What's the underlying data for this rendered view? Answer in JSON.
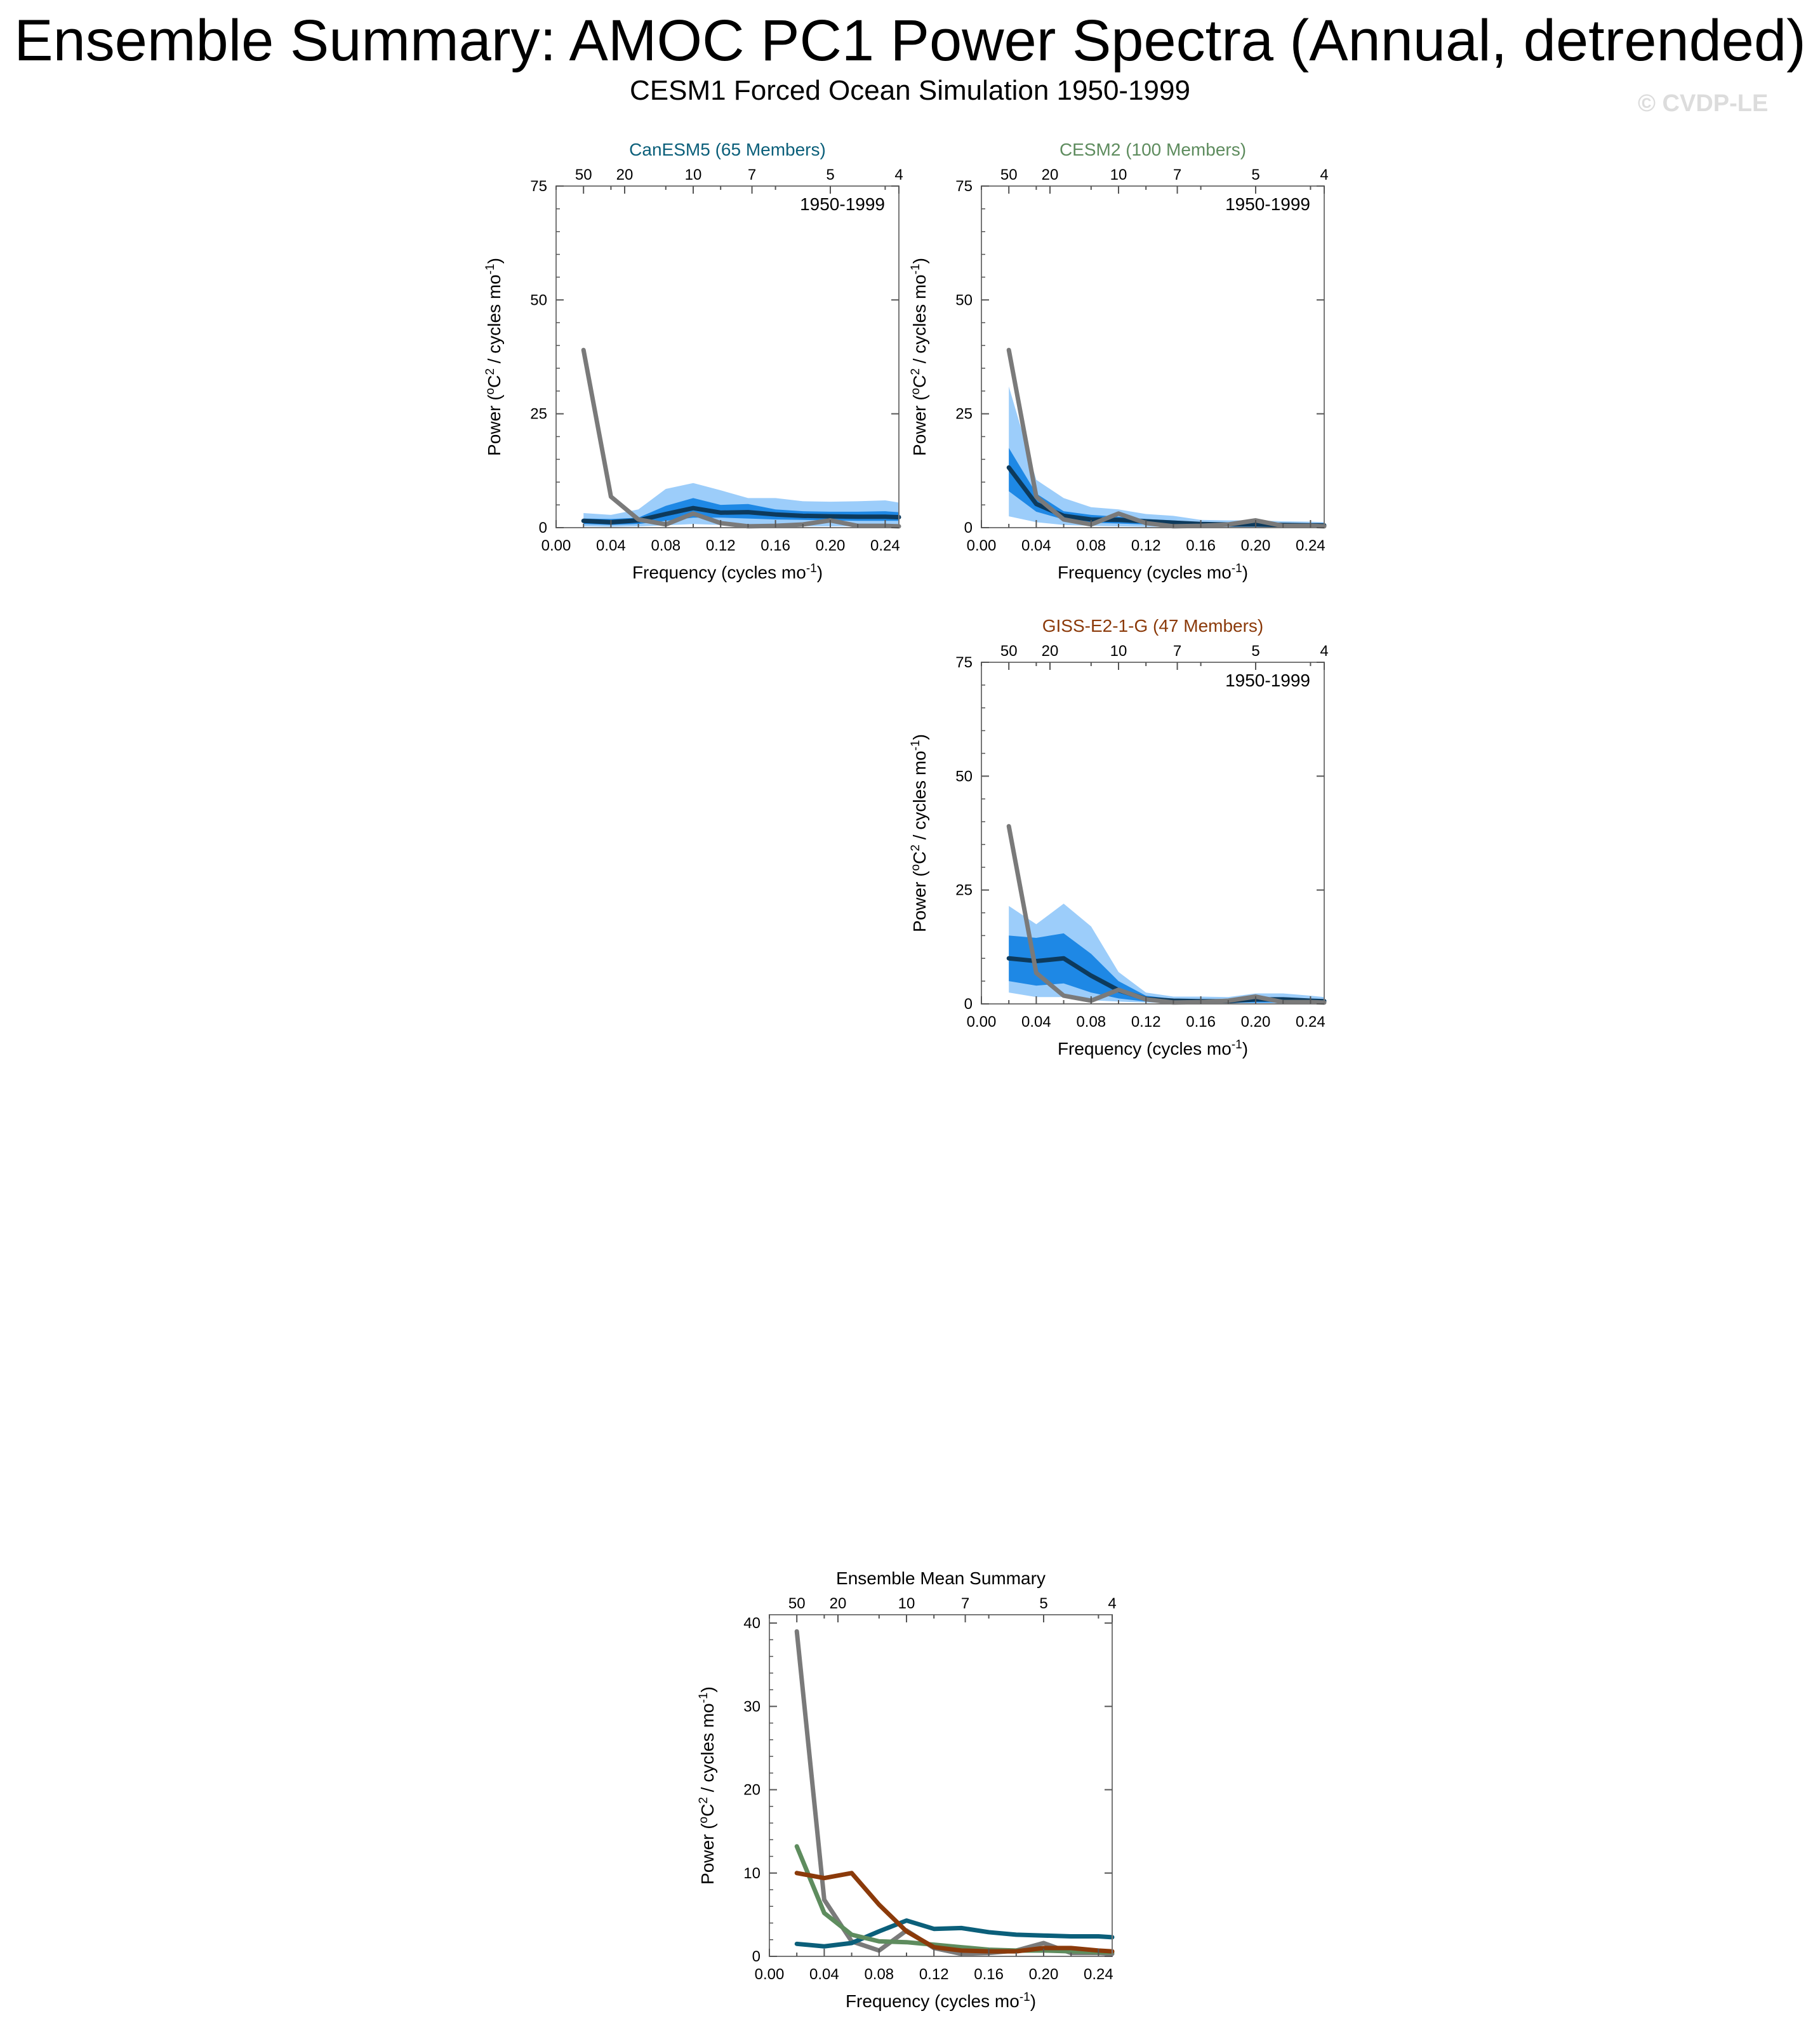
{
  "header": {
    "title": "Ensemble Summary: AMOC PC1 Power Spectra (Annual, detrended)",
    "subtitle": "CESM1 Forced Ocean Simulation 1950-1999",
    "watermark": "© CVDP-LE"
  },
  "colors": {
    "canesm5": "#0b5f7a",
    "cesm2": "#5e8c5e",
    "giss": "#8b3a0a",
    "observed": "#7a7a7a",
    "ensemble_mean": "#0d3a5c",
    "inner_band": "#1e88e5",
    "outer_band": "#9ccdfa"
  },
  "chart_data": [
    {
      "type": "line",
      "title": "CanESM5 (65 Members)",
      "period_label": "1950-1999",
      "xlabel": "Frequency (cycles mo-1)",
      "ylabel": "Power (oC2 / cycles mo-1)",
      "xlim": [
        0,
        0.25
      ],
      "ylim": [
        0,
        75
      ],
      "x_ticks": [
        "0.00",
        "0.04",
        "0.08",
        "0.12",
        "0.16",
        "0.20",
        "0.24"
      ],
      "y_ticks": [
        "0",
        "25",
        "50",
        "75"
      ],
      "top_axis_ticks": [
        "50",
        "20",
        "10",
        "7",
        "5",
        "4"
      ],
      "x": [
        0.02,
        0.04,
        0.06,
        0.08,
        0.1,
        0.12,
        0.14,
        0.16,
        0.18,
        0.2,
        0.22,
        0.24,
        0.25
      ],
      "outer_band": {
        "lower": [
          0.3,
          0.2,
          0.3,
          0.5,
          0.8,
          0.6,
          0.5,
          0.4,
          0.3,
          0.3,
          0.3,
          0.3,
          0.3
        ],
        "upper": [
          3.2,
          2.8,
          4,
          8.5,
          9.8,
          8.2,
          6.5,
          6.5,
          5.8,
          5.7,
          5.8,
          6,
          5.5
        ]
      },
      "inner_band": {
        "lower": [
          0.8,
          0.6,
          0.8,
          1.5,
          2.2,
          2.2,
          2,
          1.8,
          1.7,
          1.6,
          1.5,
          1.5,
          1.5
        ],
        "upper": [
          2,
          1.9,
          2.2,
          4.8,
          6.5,
          5,
          5.2,
          4,
          3.6,
          3.5,
          3.5,
          3.6,
          3.4
        ]
      },
      "series": [
        {
          "role": "ensemble_mean",
          "values": [
            1.5,
            1.2,
            1.6,
            3,
            4.3,
            3.3,
            3.4,
            2.9,
            2.6,
            2.5,
            2.4,
            2.4,
            2.3
          ]
        },
        {
          "role": "observed",
          "values": [
            39,
            6.8,
            1.8,
            0.7,
            3.1,
            1.0,
            0.3,
            0.4,
            0.7,
            1.6,
            0.4,
            0.4,
            0.3
          ]
        }
      ]
    },
    {
      "type": "line",
      "title": "CESM2 (100 Members)",
      "period_label": "1950-1999",
      "xlabel": "Frequency (cycles mo-1)",
      "ylabel": "Power (oC2 / cycles mo-1)",
      "xlim": [
        0,
        0.25
      ],
      "ylim": [
        0,
        75
      ],
      "x_ticks": [
        "0.00",
        "0.04",
        "0.08",
        "0.12",
        "0.16",
        "0.20",
        "0.24"
      ],
      "y_ticks": [
        "0",
        "25",
        "50",
        "75"
      ],
      "top_axis_ticks": [
        "50",
        "20",
        "10",
        "7",
        "5",
        "4"
      ],
      "x": [
        0.02,
        0.04,
        0.06,
        0.08,
        0.1,
        0.12,
        0.14,
        0.16,
        0.18,
        0.2,
        0.22,
        0.24,
        0.25
      ],
      "outer_band": {
        "lower": [
          2.5,
          1.2,
          0.6,
          0.4,
          0.3,
          0.2,
          0.2,
          0.1,
          0.1,
          0.1,
          0.1,
          0.1,
          0.1
        ],
        "upper": [
          31,
          10.5,
          6.5,
          4.5,
          4,
          3,
          2.6,
          1.7,
          1.6,
          1.6,
          1.4,
          1.3,
          1.2
        ]
      },
      "inner_band": {
        "lower": [
          8,
          3.5,
          1.8,
          1.1,
          0.9,
          0.7,
          0.6,
          0.4,
          0.4,
          0.4,
          0.3,
          0.3,
          0.3
        ],
        "upper": [
          17.5,
          7.5,
          3.6,
          2.8,
          2.4,
          1.9,
          1.6,
          1.1,
          1.1,
          1.0,
          0.9,
          0.9,
          0.8
        ]
      },
      "series": [
        {
          "role": "ensemble_mean",
          "values": [
            13.2,
            5.2,
            2.6,
            1.8,
            1.7,
            1.4,
            1.1,
            0.8,
            0.7,
            0.7,
            0.6,
            0.5,
            0.5
          ]
        },
        {
          "role": "observed",
          "values": [
            39,
            6.8,
            1.8,
            0.7,
            3.1,
            1.0,
            0.3,
            0.4,
            0.7,
            1.6,
            0.4,
            0.4,
            0.3
          ]
        }
      ]
    },
    {
      "type": "line",
      "title": "GISS-E2-1-G (47 Members)",
      "period_label": "1950-1999",
      "xlabel": "Frequency (cycles mo-1)",
      "ylabel": "Power (oC2 / cycles mo-1)",
      "xlim": [
        0,
        0.25
      ],
      "ylim": [
        0,
        75
      ],
      "x_ticks": [
        "0.00",
        "0.04",
        "0.08",
        "0.12",
        "0.16",
        "0.20",
        "0.24"
      ],
      "y_ticks": [
        "0",
        "25",
        "50",
        "75"
      ],
      "top_axis_ticks": [
        "50",
        "20",
        "10",
        "7",
        "5",
        "4"
      ],
      "x": [
        0.02,
        0.04,
        0.06,
        0.08,
        0.1,
        0.12,
        0.14,
        0.16,
        0.18,
        0.2,
        0.22,
        0.24,
        0.25
      ],
      "outer_band": {
        "lower": [
          2.5,
          1.5,
          1.5,
          0.8,
          0.5,
          0.3,
          0.2,
          0.1,
          0.1,
          0.1,
          0.1,
          0.1,
          0.1
        ],
        "upper": [
          21.5,
          17.5,
          22,
          17,
          7,
          2.5,
          1.6,
          1.6,
          1.5,
          2.3,
          2.3,
          1.8,
          1.5
        ]
      },
      "inner_band": {
        "lower": [
          5,
          4,
          4.5,
          2.5,
          1.2,
          0.5,
          0.4,
          0.3,
          0.3,
          0.3,
          0.3,
          0.3,
          0.3
        ],
        "upper": [
          15,
          14.5,
          15.5,
          11,
          5,
          1.8,
          1.1,
          1.0,
          1.0,
          1.5,
          1.4,
          1.1,
          1.0
        ]
      },
      "series": [
        {
          "role": "ensemble_mean",
          "values": [
            10,
            9.4,
            10,
            6.2,
            3,
            1.1,
            0.7,
            0.6,
            0.6,
            1.0,
            1.0,
            0.7,
            0.6
          ]
        },
        {
          "role": "observed",
          "values": [
            39,
            6.8,
            1.8,
            0.7,
            3.1,
            1.0,
            0.3,
            0.4,
            0.7,
            1.6,
            0.4,
            0.4,
            0.3
          ]
        }
      ]
    },
    {
      "type": "line",
      "title": "Ensemble Mean Summary",
      "xlabel": "Frequency (cycles mo-1)",
      "ylabel": "Power (oC2 / cycles mo-1)",
      "xlim": [
        0,
        0.25
      ],
      "ylim": [
        0,
        41
      ],
      "x_ticks": [
        "0.00",
        "0.04",
        "0.08",
        "0.12",
        "0.16",
        "0.20",
        "0.24"
      ],
      "y_ticks": [
        "0",
        "10",
        "20",
        "30",
        "40"
      ],
      "top_axis_ticks": [
        "50",
        "20",
        "10",
        "7",
        "5",
        "4"
      ],
      "x": [
        0.02,
        0.04,
        0.06,
        0.08,
        0.1,
        0.12,
        0.14,
        0.16,
        0.18,
        0.2,
        0.22,
        0.24,
        0.25
      ],
      "series": [
        {
          "role": "canesm5",
          "values": [
            1.5,
            1.2,
            1.6,
            3,
            4.3,
            3.3,
            3.4,
            2.9,
            2.6,
            2.5,
            2.4,
            2.4,
            2.3
          ]
        },
        {
          "role": "cesm2",
          "values": [
            13.2,
            5.2,
            2.6,
            1.8,
            1.7,
            1.4,
            1.1,
            0.8,
            0.7,
            0.7,
            0.6,
            0.5,
            0.5
          ]
        },
        {
          "role": "giss",
          "values": [
            10,
            9.4,
            10,
            6.2,
            3,
            1.1,
            0.7,
            0.6,
            0.6,
            1.0,
            1.0,
            0.7,
            0.6
          ]
        },
        {
          "role": "observed",
          "values": [
            39,
            6.8,
            1.8,
            0.7,
            3.1,
            1.0,
            0.3,
            0.4,
            0.7,
            1.6,
            0.4,
            0.4,
            0.3
          ]
        }
      ]
    }
  ]
}
